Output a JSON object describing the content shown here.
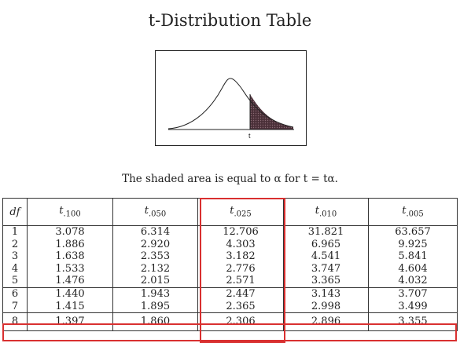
{
  "title": "t-Distribution Table",
  "figure": {
    "t_label": "t"
  },
  "caption": "The shaded area is equal to α for t = tα.",
  "table": {
    "header": {
      "df": "df",
      "columns": [
        {
          "sym": "t",
          "sub": ".100"
        },
        {
          "sym": "t",
          "sub": ".050"
        },
        {
          "sym": "t",
          "sub": ".025"
        },
        {
          "sym": "t",
          "sub": ".010"
        },
        {
          "sym": "t",
          "sub": ".005"
        }
      ]
    },
    "rows": [
      {
        "df": "1",
        "values": [
          "3.078",
          "6.314",
          "12.706",
          "31.821",
          "63.657"
        ]
      },
      {
        "df": "2",
        "values": [
          "1.886",
          "2.920",
          "4.303",
          "6.965",
          "9.925"
        ]
      },
      {
        "df": "3",
        "values": [
          "1.638",
          "2.353",
          "3.182",
          "4.541",
          "5.841"
        ]
      },
      {
        "df": "4",
        "values": [
          "1.533",
          "2.132",
          "2.776",
          "3.747",
          "4.604"
        ]
      },
      {
        "df": "5",
        "values": [
          "1.476",
          "2.015",
          "2.571",
          "3.365",
          "4.032"
        ]
      },
      {
        "df": "6",
        "values": [
          "1.440",
          "1.943",
          "2.447",
          "3.143",
          "3.707"
        ]
      },
      {
        "df": "7",
        "values": [
          "1.415",
          "1.895",
          "2.365",
          "2.998",
          "3.499"
        ]
      },
      {
        "df": "8",
        "values": [
          "1.397",
          "1.860",
          "2.306",
          "2.896",
          "3.355"
        ]
      }
    ]
  },
  "highlight": {
    "color": "#d93030",
    "column": ".025",
    "row": "8"
  }
}
